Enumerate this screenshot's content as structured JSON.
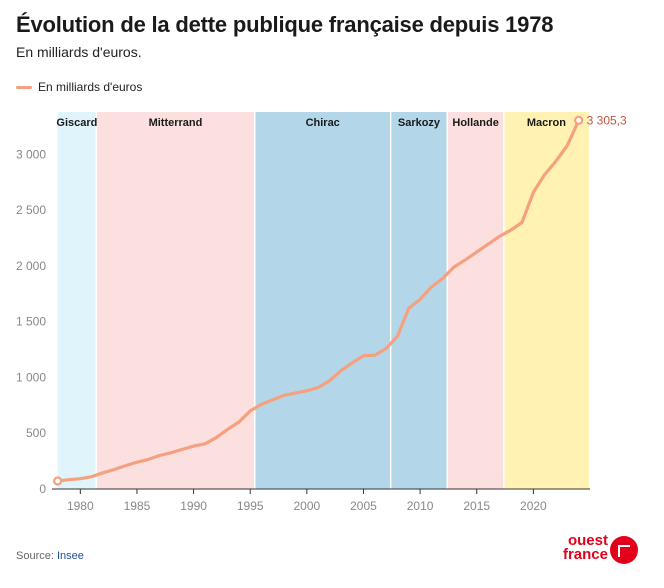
{
  "header": {
    "title": "Évolution de la dette publique française depuis 1978",
    "subtitle": "En milliards d'euros."
  },
  "legend": {
    "label": "En milliards d'euros"
  },
  "source": {
    "prefix": "Source: ",
    "name": "Insee"
  },
  "logo": {
    "text": "ouest\nfrance",
    "color": "#e2001a"
  },
  "colors": {
    "line": "#f5a07f",
    "last_label": "#c5553a",
    "grid_axis": "#333333",
    "tick_text": "#888888"
  },
  "chart_data": {
    "type": "line",
    "title": "Évolution de la dette publique française depuis 1978",
    "subtitle": "En milliards d'euros.",
    "xlabel": "",
    "ylabel": "",
    "xlim": [
      1977.5,
      2025.0
    ],
    "ylim": [
      0,
      3380
    ],
    "x_ticks": [
      1980,
      1985,
      1990,
      1995,
      2000,
      2005,
      2010,
      2015,
      2020
    ],
    "x_tick_labels": [
      "1980",
      "1985",
      "1990",
      "1995",
      "2000",
      "2005",
      "2010",
      "2015",
      "2020"
    ],
    "y_ticks": [
      0,
      500,
      1000,
      1500,
      2000,
      2500,
      3000
    ],
    "y_tick_labels": [
      "0",
      "500",
      "1 000",
      "1 500",
      "2 000",
      "2 500",
      "3 000"
    ],
    "grid": false,
    "legend_position": "top-left",
    "last_value_label": "3 305,3",
    "series": [
      {
        "name": "En milliards d'euros",
        "x": [
          1978,
          1979,
          1980,
          1981,
          1982,
          1983,
          1984,
          1985,
          1986,
          1987,
          1988,
          1989,
          1990,
          1991,
          1992,
          1993,
          1994,
          1995,
          1996,
          1997,
          1998,
          1999,
          2000,
          2001,
          2002,
          2003,
          2004,
          2005,
          2006,
          2007,
          2008,
          2009,
          2010,
          2011,
          2012,
          2013,
          2014,
          2015,
          2016,
          2017,
          2018,
          2019,
          2020,
          2021,
          2022,
          2023,
          2024
        ],
        "values": [
          72,
          83,
          92,
          110,
          145,
          175,
          210,
          240,
          265,
          300,
          325,
          355,
          385,
          405,
          460,
          535,
          600,
          700,
          760,
          800,
          840,
          860,
          880,
          910,
          970,
          1060,
          1130,
          1195,
          1200,
          1260,
          1370,
          1620,
          1700,
          1810,
          1890,
          1990,
          2055,
          2125,
          2195,
          2265,
          2320,
          2390,
          2660,
          2820,
          2940,
          3080,
          3305.3
        ]
      }
    ],
    "periods": [
      {
        "label": "Giscard",
        "start": 1978.0,
        "end": 1981.4,
        "color": "#dff4fb"
      },
      {
        "label": "Mitterrand",
        "start": 1981.4,
        "end": 1995.4,
        "color": "#fce0df"
      },
      {
        "label": "Chirac",
        "start": 1995.4,
        "end": 2007.4,
        "color": "#b3d7e9"
      },
      {
        "label": "Sarkozy",
        "start": 2007.4,
        "end": 2012.4,
        "color": "#b3d7e9"
      },
      {
        "label": "Hollande",
        "start": 2012.4,
        "end": 2017.4,
        "color": "#fce0df"
      },
      {
        "label": "Macron",
        "start": 2017.4,
        "end": 2024.9,
        "color": "#fff2b3"
      }
    ]
  }
}
